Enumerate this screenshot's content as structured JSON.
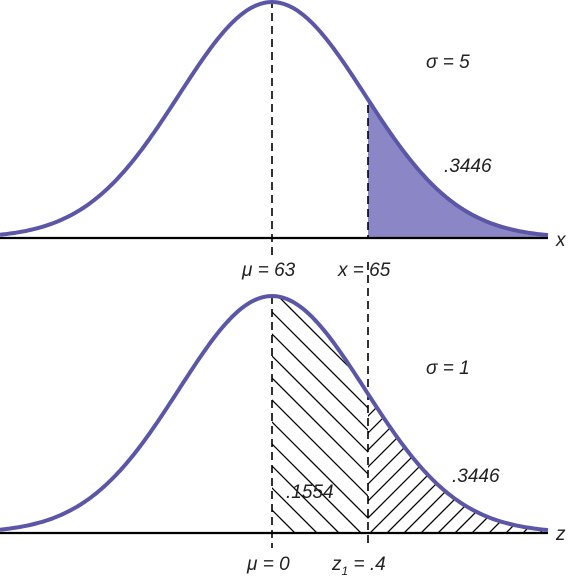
{
  "top_panel": {
    "sigma_label": "σ = 5",
    "area_label": ".3446",
    "axis_var": "x",
    "mean_label": "μ = 63",
    "x_label": "x = 65",
    "fill_color": "#8b87c7",
    "curve_color": "#5b56a6"
  },
  "bottom_panel": {
    "sigma_label": "σ = 1",
    "area_label": ".3446",
    "middle_area_label": ".1554",
    "axis_var": "z",
    "mean_label": "μ = 0",
    "z_label_prefix": "z",
    "z_label_sub": "1",
    "z_label_suffix": " = .4"
  }
}
